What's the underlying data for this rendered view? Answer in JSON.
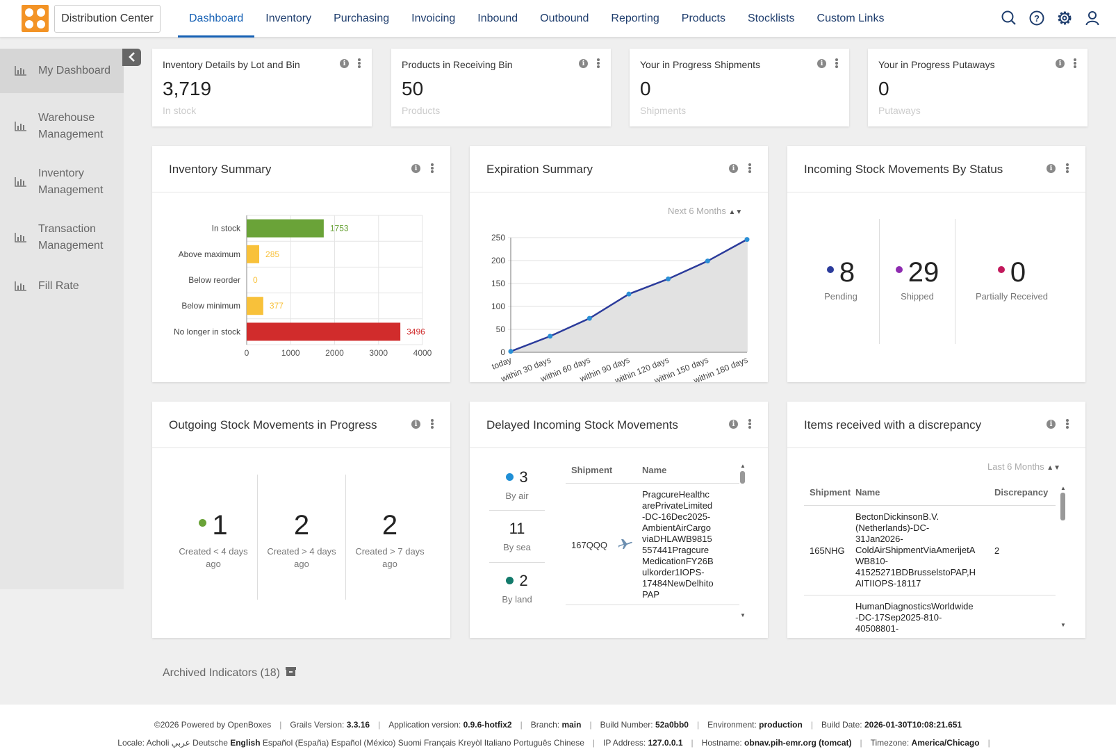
{
  "header": {
    "location": "Distribution Center",
    "nav": [
      "Dashboard",
      "Inventory",
      "Purchasing",
      "Invoicing",
      "Inbound",
      "Outbound",
      "Reporting",
      "Products",
      "Stocklists",
      "Custom Links"
    ],
    "active_nav": "Dashboard",
    "icons": [
      "search-icon",
      "help-icon",
      "settings-icon",
      "user-icon"
    ]
  },
  "sidebar": {
    "items": [
      {
        "label": "My Dashboard",
        "active": true
      },
      {
        "label": "Warehouse Management"
      },
      {
        "label": "Inventory Management"
      },
      {
        "label": "Transaction Management"
      },
      {
        "label": "Fill Rate"
      }
    ]
  },
  "number_cards": [
    {
      "title": "Inventory Details by Lot and Bin",
      "value": "3,719",
      "sub": "In stock"
    },
    {
      "title": "Products in Receiving Bin",
      "value": "50",
      "sub": "Products"
    },
    {
      "title": "Your in Progress Shipments",
      "value": "0",
      "sub": "Shipments"
    },
    {
      "title": "Your in Progress Putaways",
      "value": "0",
      "sub": "Putaways"
    }
  ],
  "inventory_summary": {
    "title": "Inventory Summary",
    "chart_data": {
      "type": "bar",
      "orientation": "horizontal",
      "categories": [
        "In stock",
        "Above maximum",
        "Below reorder",
        "Below minimum",
        "No longer in stock"
      ],
      "values": [
        1753,
        285,
        0,
        377,
        3496
      ],
      "colors": [
        "#6aa338",
        "#f8c13a",
        "#f8c13a",
        "#f8c13a",
        "#d12c2c"
      ],
      "xlim": [
        0,
        4000
      ],
      "xticks": [
        "0",
        "1000",
        "2000",
        "3000",
        "4000"
      ],
      "grid": true
    }
  },
  "expiration_summary": {
    "title": "Expiration Summary",
    "filter": "Next 6 Months",
    "chart_data": {
      "type": "area",
      "categories": [
        "today",
        "within 30 days",
        "within 60 days",
        "within 90 days",
        "within 120 days",
        "within 150 days",
        "within 180 days"
      ],
      "values": [
        2,
        35,
        74,
        127,
        160,
        199,
        246
      ],
      "ylim": [
        0,
        250
      ],
      "yticks": [
        "0",
        "50",
        "100",
        "150",
        "200",
        "250"
      ],
      "line_color": "#2b3b9b",
      "point_color": "#2a8fd6",
      "fill_color": "#e2e2e2"
    }
  },
  "incoming_status": {
    "title": "Incoming Stock Movements By Status",
    "items": [
      {
        "value": "8",
        "label": "Pending",
        "color": "#2b3b9b"
      },
      {
        "value": "29",
        "label": "Shipped",
        "color": "#8e2bb0"
      },
      {
        "value": "0",
        "label": "Partially Received",
        "color": "#c2185b"
      }
    ]
  },
  "outgoing_progress": {
    "title": "Outgoing Stock Movements in Progress",
    "items": [
      {
        "value": "1",
        "label": "Created < 4 days ago",
        "color": "#6aa338"
      },
      {
        "value": "2",
        "label": "Created > 4 days ago"
      },
      {
        "value": "2",
        "label": "Created > 7 days ago"
      }
    ]
  },
  "delayed_incoming": {
    "title": "Delayed Incoming Stock Movements",
    "stats": [
      {
        "value": "3",
        "label": "By air",
        "color": "#1f8fd6"
      },
      {
        "value": "11",
        "label": "By sea"
      },
      {
        "value": "2",
        "label": "By land",
        "color": "#127a6b"
      }
    ],
    "columns": [
      "Shipment",
      "Name"
    ],
    "rows": [
      {
        "shipment": "167QQQ",
        "name_lines": [
          "PragcureHealthc",
          "arePrivateLimited",
          "-DC-16Dec2025-",
          "AmbientAirCargo",
          "viaDHLAWB9815",
          "557441Pragcure",
          "MedicationFY26B",
          "ulkorder1IOPS-",
          "17484NewDelhito",
          "PAP"
        ]
      }
    ]
  },
  "discrepancy": {
    "title": "Items received with a discrepancy",
    "filter": "Last 6 Months",
    "columns": [
      "Shipment",
      "Name",
      "Discrepancy"
    ],
    "rows": [
      {
        "shipment": "165NHG",
        "name_lines": [
          "BectonDickinsonB.V.",
          "(Netherlands)-DC-",
          "31Jan2026-",
          "ColdAirShipmentViaAmerijetA",
          "WB810-",
          "41525271BDBrusselstoPAP,H",
          "AITIIOPS-18117"
        ],
        "discrepancy": "2"
      },
      {
        "shipment": "",
        "name_lines": [
          "HumanDiagnosticsWorldwide",
          "-DC-17Sep2025-810-",
          "40508801-"
        ],
        "discrepancy": ""
      }
    ]
  },
  "archived": "Archived Indicators (18)",
  "footer": {
    "line1": [
      {
        "t": "©2026 Powered by OpenBoxes"
      },
      {
        "t": "Grails Version: ",
        "b": "3.3.16"
      },
      {
        "t": "Application version: ",
        "b": "0.9.6-hotfix2"
      },
      {
        "t": "Branch: ",
        "b": "main"
      },
      {
        "t": "Build Number: ",
        "b": "52a0bb0"
      },
      {
        "t": "Environment: ",
        "b": "production"
      },
      {
        "t": "Build Date: ",
        "b": "2026-01-30T10:08:21.651"
      }
    ],
    "locale_label": "Locale:",
    "locales": [
      "Acholi",
      "عربي",
      "Deutsche",
      "English",
      "Español (España)",
      "Español (México)",
      "Suomi",
      "Français",
      "Kreyòl",
      "Italiano",
      "Português",
      "Chinese"
    ],
    "locale_active": "English",
    "line2": [
      {
        "t": "IP Address: ",
        "b": "127.0.0.1"
      },
      {
        "t": "Hostname: ",
        "b": "obnav.pih-emr.org (tomcat)"
      },
      {
        "t": "Timezone: ",
        "b": "America/Chicago"
      }
    ]
  }
}
